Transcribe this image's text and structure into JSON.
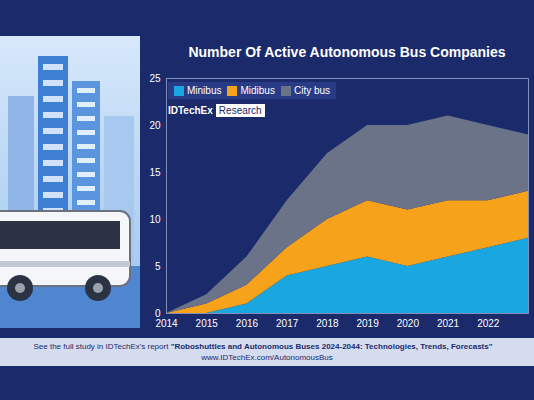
{
  "chart_data": {
    "type": "area",
    "title": "Number Of Active Autonomous Bus Companies",
    "stacked": true,
    "x": [
      2014,
      2015,
      2016,
      2017,
      2018,
      2019,
      2020,
      2021,
      2022,
      2023
    ],
    "series": [
      {
        "name": "Minibus",
        "color": "#1aa7e0",
        "values": [
          0,
          0,
          1,
          4,
          5,
          6,
          5,
          6,
          7,
          8
        ]
      },
      {
        "name": "Midibus",
        "color": "#f7a21b",
        "values": [
          0,
          1,
          2,
          3,
          5,
          6,
          6,
          6,
          5,
          5
        ]
      },
      {
        "name": "City bus",
        "color": "#6b7388",
        "values": [
          0,
          1,
          3,
          5,
          7,
          8,
          9,
          9,
          8,
          6
        ]
      }
    ],
    "xlim": [
      2014,
      2023
    ],
    "xticks": [
      2014,
      2015,
      2016,
      2017,
      2018,
      2019,
      2020,
      2021,
      2022
    ],
    "ylim": [
      0,
      25
    ],
    "yticks": [
      0,
      5,
      10,
      15,
      20,
      25
    ],
    "grid": false,
    "legend": "top-left",
    "logo": [
      "IDTechEx",
      "Research"
    ],
    "footnote": [
      "See the full study in IDTechEx's report",
      "\"Roboshuttles and Autonomous Buses 2024-2044: Technologies, Trends, Forecasts\"",
      "www.IDTechEx.com/AutonomousBus"
    ]
  }
}
